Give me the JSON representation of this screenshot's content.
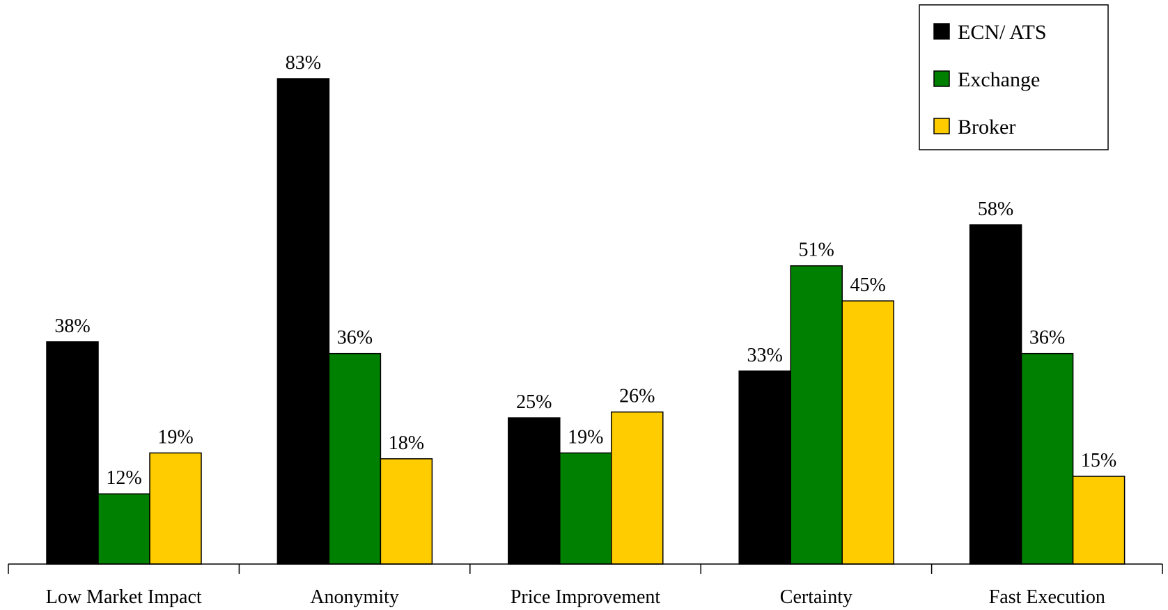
{
  "chart_data": {
    "type": "bar",
    "categories": [
      "Low Market Impact",
      "Anonymity",
      "Price Improvement",
      "Certainty",
      "Fast Execution"
    ],
    "series": [
      {
        "name": "ECN/ ATS",
        "values": [
          38,
          83,
          25,
          33,
          58
        ],
        "color": "#000000"
      },
      {
        "name": "Exchange",
        "values": [
          12,
          36,
          19,
          51,
          36
        ],
        "color": "#008000"
      },
      {
        "name": "Broker",
        "values": [
          19,
          18,
          26,
          45,
          15
        ],
        "color": "#FFCC00"
      }
    ],
    "value_suffix": "%",
    "ylim": [
      0,
      83
    ],
    "grid": false,
    "legend_position": "top-right"
  }
}
